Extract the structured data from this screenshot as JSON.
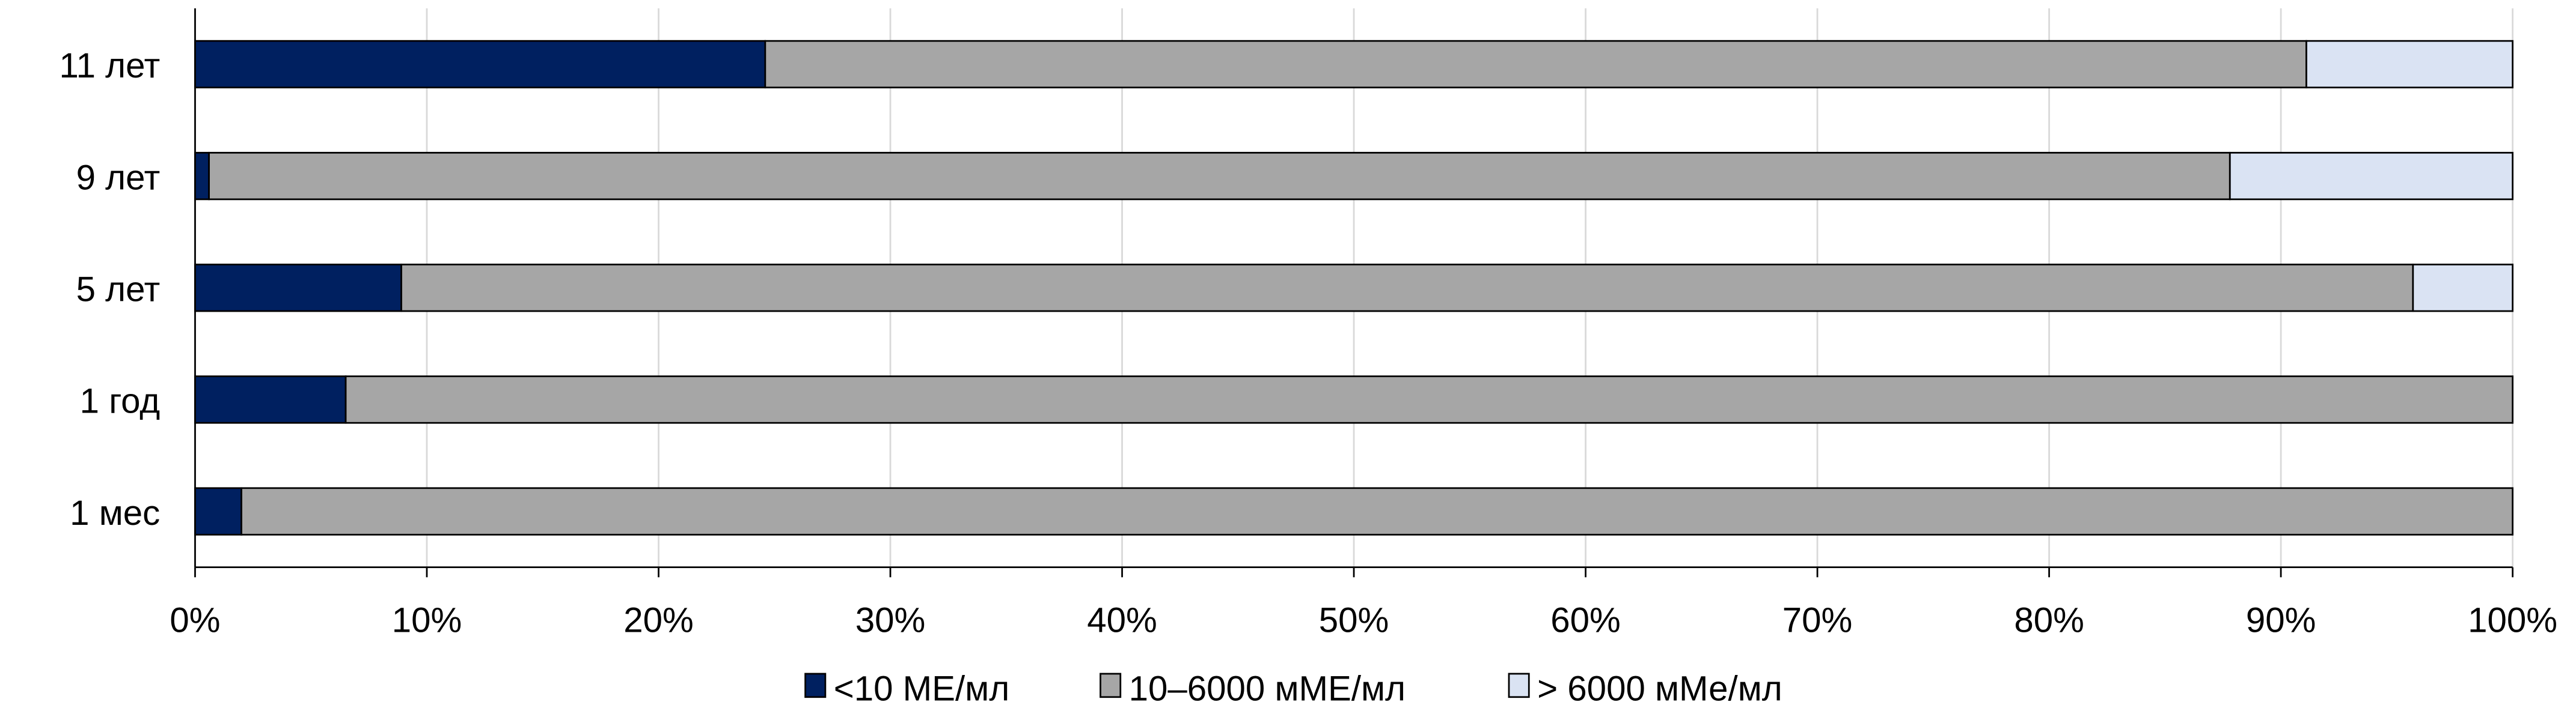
{
  "chart_data": {
    "type": "bar",
    "orientation": "horizontal",
    "stacked": "percent",
    "categories": [
      "11 лет",
      "9 лет",
      "5 лет",
      "1 год",
      "1 мес"
    ],
    "series": [
      {
        "name": "<10 МЕ/мл",
        "color": "#002060",
        "values": [
          24.6,
          0.6,
          8.9,
          6.5,
          2.0
        ]
      },
      {
        "name": "10–6000 мМЕ/мл",
        "color": "#A6A6A6",
        "values": [
          66.5,
          87.2,
          86.8,
          93.5,
          98.0
        ]
      },
      {
        "name": "> 6000 мМе/мл",
        "color": "#DAE3F3",
        "values": [
          8.9,
          12.2,
          4.3,
          0,
          0
        ]
      }
    ],
    "xlim": [
      0,
      100
    ],
    "xticks": [
      "0%",
      "10%",
      "20%",
      "30%",
      "40%",
      "50%",
      "60%",
      "70%",
      "80%",
      "90%",
      "100%"
    ],
    "grid": true,
    "legend": "bottom",
    "title": "",
    "xlabel": "",
    "ylabel": ""
  }
}
